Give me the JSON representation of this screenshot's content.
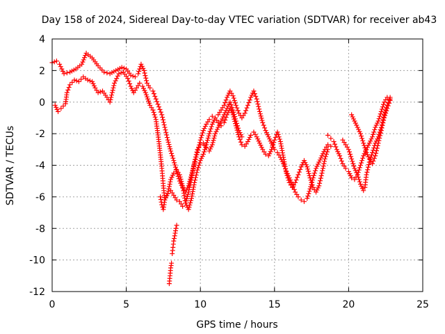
{
  "chart_data": {
    "type": "scatter",
    "title": "Day 158 of 2024, Sidereal Day-to-day VTEC variation (SDTVAR) for receiver ab43",
    "xlabel": "GPS time / hours",
    "ylabel": "SDTVAR / TECUs",
    "xlim": [
      0,
      25
    ],
    "ylim": [
      -12,
      4
    ],
    "xticks": [
      0,
      5,
      10,
      15,
      20,
      25
    ],
    "yticks": [
      -12,
      -10,
      -8,
      -6,
      -4,
      -2,
      0,
      2,
      4
    ],
    "xtick_labels": [
      "0",
      "5",
      "10",
      "15",
      "20",
      "25"
    ],
    "ytick_labels": [
      "-12",
      "-10",
      "-8",
      "-6",
      "-4",
      "-2",
      "0",
      "2",
      "4"
    ],
    "grid": true,
    "marker": "+",
    "color": "#ff0000",
    "tracks": [
      {
        "name": "track-1",
        "points": [
          [
            0.0,
            2.5
          ],
          [
            0.3,
            2.6
          ],
          [
            0.5,
            2.4
          ],
          [
            0.8,
            1.8
          ],
          [
            1.2,
            1.9
          ],
          [
            1.6,
            2.1
          ],
          [
            2.0,
            2.4
          ],
          [
            2.3,
            3.1
          ],
          [
            2.7,
            2.8
          ],
          [
            3.1,
            2.3
          ],
          [
            3.5,
            1.9
          ],
          [
            3.9,
            1.8
          ],
          [
            4.3,
            2.0
          ],
          [
            4.7,
            2.2
          ],
          [
            5.0,
            2.1
          ],
          [
            5.3,
            1.7
          ],
          [
            5.6,
            1.6
          ],
          [
            5.8,
            1.8
          ],
          [
            6.0,
            2.4
          ],
          [
            6.2,
            2.0
          ],
          [
            6.4,
            1.2
          ],
          [
            6.6,
            0.9
          ],
          [
            6.8,
            0.7
          ],
          [
            7.0,
            0.2
          ],
          [
            7.2,
            -0.3
          ],
          [
            7.4,
            -0.8
          ],
          [
            7.6,
            -1.6
          ],
          [
            7.8,
            -2.4
          ],
          [
            8.0,
            -3.1
          ],
          [
            8.2,
            -3.7
          ],
          [
            8.4,
            -4.4
          ],
          [
            8.6,
            -5.0
          ],
          [
            8.8,
            -5.4
          ],
          [
            9.0,
            -5.7
          ],
          [
            9.2,
            -5.3
          ],
          [
            9.4,
            -4.6
          ],
          [
            9.6,
            -3.9
          ],
          [
            9.8,
            -3.2
          ],
          [
            10.0,
            -2.4
          ],
          [
            10.2,
            -1.8
          ],
          [
            10.4,
            -1.4
          ],
          [
            10.6,
            -1.1
          ],
          [
            10.8,
            -0.9
          ],
          [
            11.0,
            -1.0
          ],
          [
            11.2,
            -1.3
          ],
          [
            11.4,
            -1.5
          ],
          [
            11.6,
            -1.3
          ],
          [
            11.8,
            -0.8
          ],
          [
            12.0,
            -0.4
          ],
          [
            12.2,
            -0.8
          ],
          [
            12.4,
            -1.5
          ],
          [
            12.6,
            -2.2
          ],
          [
            12.8,
            -2.7
          ],
          [
            13.0,
            -2.8
          ],
          [
            13.2,
            -2.5
          ],
          [
            13.4,
            -2.1
          ],
          [
            13.6,
            -1.9
          ],
          [
            13.8,
            -2.2
          ],
          [
            14.0,
            -2.6
          ],
          [
            14.2,
            -3.0
          ],
          [
            14.4,
            -3.3
          ],
          [
            14.6,
            -3.4
          ],
          [
            14.8,
            -3.0
          ],
          [
            15.0,
            -2.4
          ],
          [
            15.2,
            -1.9
          ],
          [
            15.4,
            -2.5
          ],
          [
            15.6,
            -3.5
          ],
          [
            15.8,
            -4.5
          ],
          [
            16.0,
            -5.1
          ],
          [
            16.2,
            -5.4
          ],
          [
            16.4,
            -5.1
          ],
          [
            16.6,
            -4.6
          ],
          [
            16.8,
            -4.1
          ],
          [
            17.0,
            -3.7
          ],
          [
            17.2,
            -4.1
          ],
          [
            17.4,
            -4.8
          ],
          [
            17.6,
            -5.4
          ],
          [
            17.8,
            -5.7
          ],
          [
            18.0,
            -5.3
          ],
          [
            18.2,
            -4.5
          ],
          [
            18.4,
            -3.6
          ],
          [
            18.6,
            -3.0
          ],
          [
            18.8,
            -2.8
          ]
        ]
      },
      {
        "name": "track-2",
        "points": [
          [
            0.2,
            -0.2
          ],
          [
            0.4,
            -0.6
          ],
          [
            0.6,
            -0.4
          ],
          [
            0.9,
            -0.1
          ],
          [
            1.0,
            0.6
          ],
          [
            1.2,
            1.1
          ],
          [
            1.5,
            1.4
          ],
          [
            1.8,
            1.3
          ],
          [
            2.1,
            1.6
          ],
          [
            2.4,
            1.4
          ],
          [
            2.7,
            1.3
          ],
          [
            2.9,
            0.9
          ],
          [
            3.1,
            0.6
          ],
          [
            3.4,
            0.7
          ],
          [
            3.7,
            0.3
          ],
          [
            3.9,
            0.0
          ],
          [
            4.2,
            1.2
          ],
          [
            4.5,
            1.8
          ],
          [
            4.8,
            1.9
          ],
          [
            5.1,
            1.5
          ],
          [
            5.3,
            1.0
          ],
          [
            5.5,
            0.6
          ],
          [
            5.7,
            0.9
          ],
          [
            5.9,
            1.2
          ],
          [
            6.1,
            1.0
          ],
          [
            6.3,
            0.6
          ],
          [
            6.6,
            -0.2
          ],
          [
            6.8,
            -0.5
          ],
          [
            7.0,
            -1.1
          ],
          [
            7.2,
            -2.5
          ],
          [
            7.4,
            -4.2
          ],
          [
            7.5,
            -5.3
          ],
          [
            7.6,
            -6.2
          ],
          [
            7.8,
            -5.8
          ],
          [
            8.0,
            -4.9
          ],
          [
            8.2,
            -4.5
          ],
          [
            8.4,
            -4.3
          ],
          [
            8.6,
            -4.6
          ],
          [
            8.8,
            -5.3
          ],
          [
            9.0,
            -6.4
          ],
          [
            9.2,
            -6.8
          ],
          [
            9.4,
            -6.1
          ],
          [
            9.6,
            -5.1
          ],
          [
            9.8,
            -4.3
          ],
          [
            10.0,
            -3.7
          ],
          [
            10.2,
            -3.3
          ],
          [
            10.4,
            -2.7
          ],
          [
            10.6,
            -2.0
          ],
          [
            10.8,
            -1.4
          ],
          [
            11.0,
            -1.0
          ],
          [
            11.2,
            -0.8
          ],
          [
            11.4,
            -0.5
          ],
          [
            11.6,
            -0.2
          ],
          [
            11.8,
            0.3
          ],
          [
            12.0,
            0.7
          ],
          [
            12.2,
            0.4
          ],
          [
            12.4,
            -0.2
          ],
          [
            12.6,
            -0.7
          ],
          [
            12.8,
            -1.0
          ],
          [
            13.0,
            -0.7
          ],
          [
            13.2,
            -0.2
          ],
          [
            13.4,
            0.3
          ],
          [
            13.6,
            0.7
          ],
          [
            13.8,
            0.2
          ],
          [
            14.0,
            -0.6
          ],
          [
            14.2,
            -1.3
          ],
          [
            14.4,
            -1.8
          ],
          [
            14.6,
            -2.2
          ],
          [
            14.8,
            -2.6
          ],
          [
            15.0,
            -3.0
          ],
          [
            15.2,
            -3.2
          ],
          [
            15.4,
            -3.5
          ],
          [
            15.6,
            -3.9
          ],
          [
            15.8,
            -4.4
          ],
          [
            16.0,
            -4.8
          ],
          [
            16.2,
            -5.2
          ],
          [
            16.4,
            -5.7
          ],
          [
            16.6,
            -6.0
          ],
          [
            16.8,
            -6.2
          ],
          [
            17.0,
            -6.3
          ],
          [
            17.2,
            -6.1
          ],
          [
            17.4,
            -5.5
          ],
          [
            17.6,
            -4.8
          ],
          [
            17.8,
            -4.2
          ],
          [
            18.0,
            -3.8
          ],
          [
            18.2,
            -3.4
          ],
          [
            18.4,
            -3.0
          ],
          [
            18.6,
            -2.7
          ]
        ]
      },
      {
        "name": "track-3",
        "points": [
          [
            7.3,
            -6.0
          ],
          [
            7.4,
            -6.5
          ],
          [
            7.5,
            -6.8
          ],
          [
            7.6,
            -6.2
          ],
          [
            7.8,
            -5.8
          ],
          [
            8.0,
            -5.6
          ],
          [
            8.2,
            -5.9
          ],
          [
            8.4,
            -6.2
          ],
          [
            8.6,
            -6.3
          ],
          [
            8.8,
            -6.6
          ],
          [
            9.0,
            -6.4
          ],
          [
            9.2,
            -5.7
          ],
          [
            9.4,
            -4.8
          ],
          [
            9.6,
            -3.8
          ],
          [
            9.8,
            -3.0
          ],
          [
            10.0,
            -2.7
          ],
          [
            10.2,
            -2.6
          ],
          [
            10.4,
            -2.9
          ],
          [
            10.6,
            -3.1
          ],
          [
            10.8,
            -2.7
          ],
          [
            11.0,
            -2.0
          ],
          [
            11.2,
            -1.6
          ],
          [
            11.4,
            -1.2
          ],
          [
            11.6,
            -0.8
          ],
          [
            11.8,
            -0.4
          ],
          [
            12.0,
            0.0
          ],
          [
            12.2,
            -0.5
          ],
          [
            12.4,
            -1.2
          ],
          [
            12.6,
            -1.8
          ],
          [
            12.8,
            -2.2
          ]
        ]
      },
      {
        "name": "track-4",
        "points": [
          [
            7.9,
            -11.5
          ],
          [
            7.95,
            -11.0
          ],
          [
            8.0,
            -10.5
          ],
          [
            8.05,
            -10.2
          ]
        ]
      },
      {
        "name": "track-5",
        "points": [
          [
            8.1,
            -9.6
          ],
          [
            8.15,
            -9.2
          ],
          [
            8.2,
            -8.8
          ],
          [
            8.3,
            -8.3
          ],
          [
            8.35,
            -8.0
          ],
          [
            8.4,
            -7.8
          ]
        ]
      },
      {
        "name": "track-6",
        "points": [
          [
            19.6,
            -2.4
          ],
          [
            19.8,
            -2.7
          ],
          [
            20.0,
            -3.0
          ],
          [
            20.2,
            -3.6
          ],
          [
            20.4,
            -4.2
          ],
          [
            20.6,
            -4.6
          ],
          [
            20.8,
            -5.2
          ],
          [
            21.0,
            -5.6
          ],
          [
            21.1,
            -5.4
          ],
          [
            21.2,
            -4.6
          ],
          [
            21.4,
            -3.8
          ],
          [
            21.6,
            -3.2
          ],
          [
            21.8,
            -2.6
          ],
          [
            22.0,
            -2.2
          ],
          [
            22.2,
            -1.6
          ],
          [
            22.4,
            -0.8
          ],
          [
            22.6,
            -0.2
          ],
          [
            22.8,
            0.3
          ]
        ]
      },
      {
        "name": "track-7",
        "points": [
          [
            18.6,
            -2.1
          ],
          [
            18.8,
            -2.3
          ],
          [
            19.0,
            -2.5
          ],
          [
            19.2,
            -3.0
          ],
          [
            19.4,
            -3.4
          ],
          [
            19.6,
            -3.9
          ],
          [
            19.8,
            -4.2
          ],
          [
            20.0,
            -4.4
          ],
          [
            20.2,
            -4.8
          ],
          [
            20.4,
            -4.9
          ],
          [
            20.6,
            -4.6
          ],
          [
            20.8,
            -4.0
          ],
          [
            21.0,
            -3.4
          ],
          [
            21.2,
            -3.0
          ],
          [
            21.4,
            -2.6
          ],
          [
            21.6,
            -2.2
          ],
          [
            21.8,
            -1.6
          ],
          [
            22.0,
            -1.2
          ],
          [
            22.2,
            -0.6
          ],
          [
            22.4,
            0.0
          ],
          [
            22.6,
            0.3
          ],
          [
            22.8,
            0.2
          ]
        ]
      },
      {
        "name": "track-8",
        "points": [
          [
            20.2,
            -0.8
          ],
          [
            20.4,
            -1.2
          ],
          [
            20.6,
            -1.6
          ],
          [
            20.8,
            -2.0
          ],
          [
            21.0,
            -2.6
          ],
          [
            21.2,
            -3.2
          ],
          [
            21.4,
            -3.6
          ],
          [
            21.6,
            -3.9
          ],
          [
            21.8,
            -3.4
          ],
          [
            22.0,
            -2.6
          ],
          [
            22.2,
            -1.8
          ],
          [
            22.4,
            -1.0
          ],
          [
            22.6,
            -0.4
          ],
          [
            22.8,
            0.1
          ]
        ]
      }
    ]
  }
}
